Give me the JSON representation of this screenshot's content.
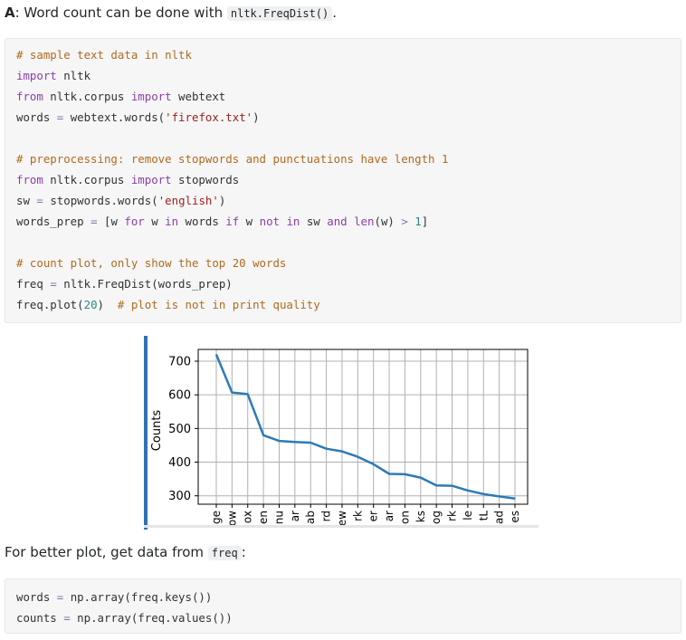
{
  "answer": {
    "prefix": "A",
    "text": ": Word count can be done with ",
    "code": "nltk.FreqDist()",
    "suffix": "."
  },
  "code_block_1": {
    "lines": [
      [
        {
          "t": "c",
          "v": "# sample text data in nltk"
        }
      ],
      [
        {
          "t": "k",
          "v": "import"
        },
        {
          "t": "p",
          "v": " nltk"
        }
      ],
      [
        {
          "t": "k",
          "v": "from"
        },
        {
          "t": "p",
          "v": " nltk.corpus "
        },
        {
          "t": "k",
          "v": "import"
        },
        {
          "t": "p",
          "v": " webtext"
        }
      ],
      [
        {
          "t": "p",
          "v": "words "
        },
        {
          "t": "o",
          "v": "="
        },
        {
          "t": "p",
          "v": " webtext.words("
        },
        {
          "t": "s",
          "v": "'firefox.txt'"
        },
        {
          "t": "p",
          "v": ")"
        }
      ],
      [],
      [
        {
          "t": "c",
          "v": "# preprocessing: remove stopwords and punctuations have length 1"
        }
      ],
      [
        {
          "t": "k",
          "v": "from"
        },
        {
          "t": "p",
          "v": " nltk.corpus "
        },
        {
          "t": "k",
          "v": "import"
        },
        {
          "t": "p",
          "v": " stopwords"
        }
      ],
      [
        {
          "t": "p",
          "v": "sw "
        },
        {
          "t": "o",
          "v": "="
        },
        {
          "t": "p",
          "v": " stopwords.words("
        },
        {
          "t": "s",
          "v": "'english'"
        },
        {
          "t": "p",
          "v": ")"
        }
      ],
      [
        {
          "t": "p",
          "v": "words_prep "
        },
        {
          "t": "o",
          "v": "="
        },
        {
          "t": "p",
          "v": " [w "
        },
        {
          "t": "k",
          "v": "for"
        },
        {
          "t": "p",
          "v": " w "
        },
        {
          "t": "k",
          "v": "in"
        },
        {
          "t": "p",
          "v": " words "
        },
        {
          "t": "k",
          "v": "if"
        },
        {
          "t": "p",
          "v": " w "
        },
        {
          "t": "k",
          "v": "not"
        },
        {
          "t": "p",
          "v": " "
        },
        {
          "t": "k",
          "v": "in"
        },
        {
          "t": "p",
          "v": " sw "
        },
        {
          "t": "k",
          "v": "and"
        },
        {
          "t": "p",
          "v": " "
        },
        {
          "t": "k",
          "v": "len"
        },
        {
          "t": "p",
          "v": "(w) "
        },
        {
          "t": "o",
          "v": ">"
        },
        {
          "t": "p",
          "v": " "
        },
        {
          "t": "n",
          "v": "1"
        },
        {
          "t": "p",
          "v": "]"
        }
      ],
      [],
      [
        {
          "t": "c",
          "v": "# count plot, only show the top 20 words"
        }
      ],
      [
        {
          "t": "p",
          "v": "freq "
        },
        {
          "t": "o",
          "v": "="
        },
        {
          "t": "p",
          "v": " nltk.FreqDist(words_prep)"
        }
      ],
      [
        {
          "t": "p",
          "v": "freq.plot("
        },
        {
          "t": "n",
          "v": "20"
        },
        {
          "t": "p",
          "v": ")  "
        },
        {
          "t": "c",
          "v": "# plot is not in print quality"
        }
      ]
    ]
  },
  "chart_data": {
    "type": "line",
    "title": "",
    "xlabel": "",
    "ylabel": "Counts",
    "x": [
      "ge",
      "ow",
      "ox",
      "en",
      "nu",
      "ar",
      "ab",
      "rd",
      "ew",
      "rk",
      "er",
      "ar",
      "on",
      "ks",
      "og",
      "rk",
      "le",
      "tL",
      "ad",
      "es"
    ],
    "values": [
      720,
      607,
      602,
      480,
      463,
      460,
      458,
      440,
      432,
      416,
      394,
      365,
      364,
      354,
      331,
      330,
      316,
      305,
      298,
      292
    ],
    "ylim": [
      275,
      735
    ],
    "yticks": [
      300,
      400,
      500,
      600,
      700
    ],
    "grid": true,
    "line_color": "#2c7bb6"
  },
  "paragraph": {
    "text": "For better plot, get data from ",
    "code": "freq",
    "suffix": ":"
  },
  "code_block_2": {
    "lines": [
      [
        {
          "t": "p",
          "v": "words "
        },
        {
          "t": "o",
          "v": "="
        },
        {
          "t": "p",
          "v": " np.array(freq.keys())"
        }
      ],
      [
        {
          "t": "p",
          "v": "counts "
        },
        {
          "t": "o",
          "v": "="
        },
        {
          "t": "p",
          "v": " np.array(freq.values())"
        }
      ]
    ]
  }
}
